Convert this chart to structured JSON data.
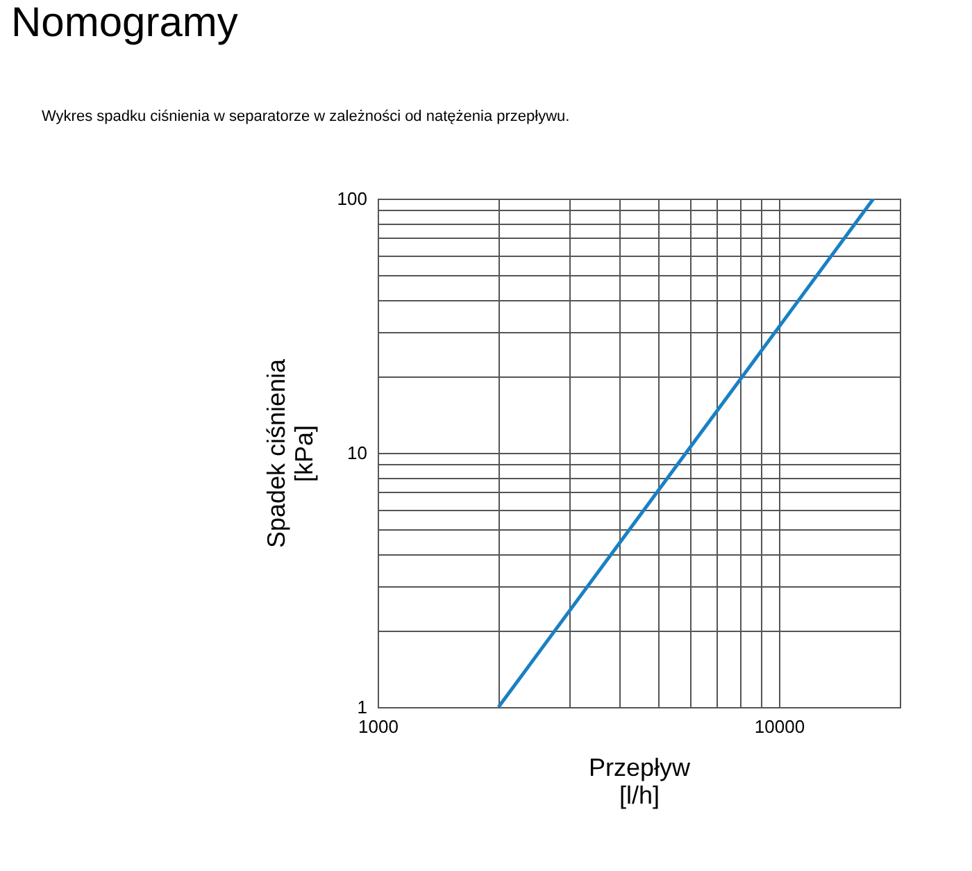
{
  "chart_data": {
    "type": "line",
    "title": "Nomogramy",
    "subtitle": "Wykres spadku ciśnienia w separatorze w zależności od natężenia przepływu.",
    "xlabel": "Przepływ\n[l/h]",
    "ylabel": "Spadek ciśnienia\n[kPa]",
    "x": [
      2000,
      10000,
      17200
    ],
    "series": [
      {
        "color": "#1a80c4",
        "values": [
          1,
          31.3,
          100
        ]
      }
    ],
    "log": "xy",
    "xlim": [
      1000,
      20000
    ],
    "ylim": [
      1,
      100
    ],
    "xticks": [
      1000,
      {
        "value": 2000,
        "label": null
      },
      {
        "value": 3000,
        "label": null
      },
      {
        "value": 4000,
        "label": null
      },
      {
        "value": 5000,
        "label": null
      },
      {
        "value": 6000,
        "label": null
      },
      {
        "value": 7000,
        "label": null
      },
      {
        "value": 8000,
        "label": null
      },
      {
        "value": 9000,
        "label": null
      },
      10000,
      {
        "value": 20000,
        "label": null
      }
    ],
    "yticks": [
      1,
      {
        "value": 2,
        "label": null
      },
      {
        "value": 3,
        "label": null
      },
      {
        "value": 4,
        "label": null
      },
      {
        "value": 5,
        "label": null
      },
      {
        "value": 6,
        "label": null
      },
      {
        "value": 7,
        "label": null
      },
      {
        "value": 8,
        "label": null
      },
      {
        "value": 9,
        "label": null
      },
      10,
      {
        "value": 20,
        "label": null
      },
      {
        "value": 30,
        "label": null
      },
      {
        "value": 40,
        "label": null
      },
      {
        "value": 50,
        "label": null
      },
      {
        "value": 60,
        "label": null
      },
      {
        "value": 70,
        "label": null
      },
      {
        "value": 80,
        "label": null
      },
      {
        "value": 90,
        "label": null
      },
      100
    ],
    "grid": true,
    "marker": "none",
    "line_style": "solid"
  }
}
